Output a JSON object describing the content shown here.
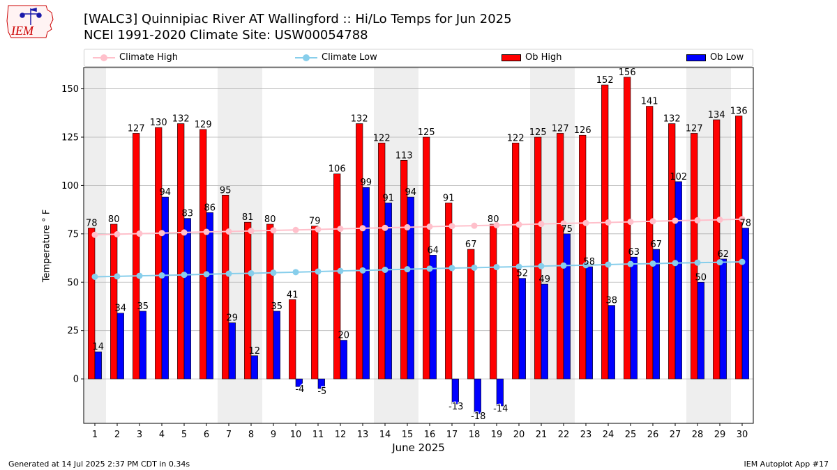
{
  "header": {
    "title_line1": "[WALC3] Quinnipiac River  AT Wallingford :: Hi/Lo Temps for Jun 2025",
    "title_line2": "NCEI 1991-2020 Climate Site: USW00054788",
    "logo_text": "IEM"
  },
  "footer": {
    "generated": "Generated at 14 Jul 2025 2:37 PM CDT in 0.34s",
    "app": "IEM Autoplot App #17"
  },
  "legend": {
    "climate_high": "Climate High",
    "climate_low": "Climate Low",
    "ob_high": "Ob High",
    "ob_low": "Ob Low"
  },
  "colors": {
    "ob_high": "#ff0000",
    "ob_low": "#0000ff",
    "climate_high": "#ffc0cb",
    "climate_low": "#87ceeb",
    "weekend_band": "#eeeeee",
    "grid": "#b0b0b0"
  },
  "chart_data": {
    "type": "bar",
    "title": "[WALC3] Quinnipiac River  AT Wallingford :: Hi/Lo Temps for Jun 2025",
    "xlabel": "June 2025",
    "ylabel": "Temperature $^\\circ$F",
    "ylabel_display": "Temperature ° F",
    "ylim": [
      -23,
      161
    ],
    "yticks": [
      0,
      25,
      50,
      75,
      100,
      125,
      150
    ],
    "categories": [
      "1",
      "2",
      "3",
      "4",
      "5",
      "6",
      "7",
      "8",
      "9",
      "10",
      "11",
      "12",
      "13",
      "14",
      "15",
      "16",
      "17",
      "18",
      "19",
      "20",
      "21",
      "22",
      "23",
      "24",
      "25",
      "26",
      "27",
      "28",
      "29",
      "30"
    ],
    "shaded_day_ranges": [
      [
        1,
        1
      ],
      [
        7,
        8
      ],
      [
        14,
        15
      ],
      [
        21,
        22
      ],
      [
        28,
        29
      ]
    ],
    "series": [
      {
        "name": "Ob High",
        "kind": "bar",
        "values": [
          78,
          80,
          127,
          130,
          132,
          129,
          95,
          81,
          80,
          41,
          79,
          106,
          132,
          122,
          113,
          125,
          91,
          67,
          80,
          122,
          125,
          127,
          126,
          152,
          156,
          141,
          132,
          127,
          134,
          136
        ]
      },
      {
        "name": "Ob Low",
        "kind": "bar",
        "values": [
          14,
          34,
          35,
          94,
          83,
          86,
          29,
          12,
          35,
          -4,
          -5,
          20,
          99,
          91,
          94,
          64,
          -13,
          -18,
          -14,
          52,
          49,
          75,
          58,
          38,
          63,
          67,
          102,
          50,
          62,
          78
        ]
      },
      {
        "name": "Climate High",
        "kind": "line",
        "values": [
          74.5,
          74.8,
          75.1,
          75.4,
          75.7,
          76.0,
          76.2,
          76.5,
          76.8,
          77.0,
          77.3,
          77.6,
          77.9,
          78.1,
          78.4,
          78.7,
          79.0,
          79.2,
          79.5,
          79.8,
          80.1,
          80.4,
          80.6,
          80.9,
          81.2,
          81.5,
          81.8,
          82.0,
          82.3,
          82.6
        ]
      },
      {
        "name": "Climate Low",
        "kind": "line",
        "values": [
          52.8,
          53.0,
          53.3,
          53.5,
          53.8,
          54.1,
          54.4,
          54.6,
          54.9,
          55.2,
          55.5,
          55.8,
          56.1,
          56.4,
          56.7,
          57.0,
          57.3,
          57.5,
          57.8,
          58.0,
          58.3,
          58.6,
          58.8,
          59.1,
          59.4,
          59.6,
          59.9,
          60.1,
          60.3,
          60.5
        ]
      }
    ]
  }
}
